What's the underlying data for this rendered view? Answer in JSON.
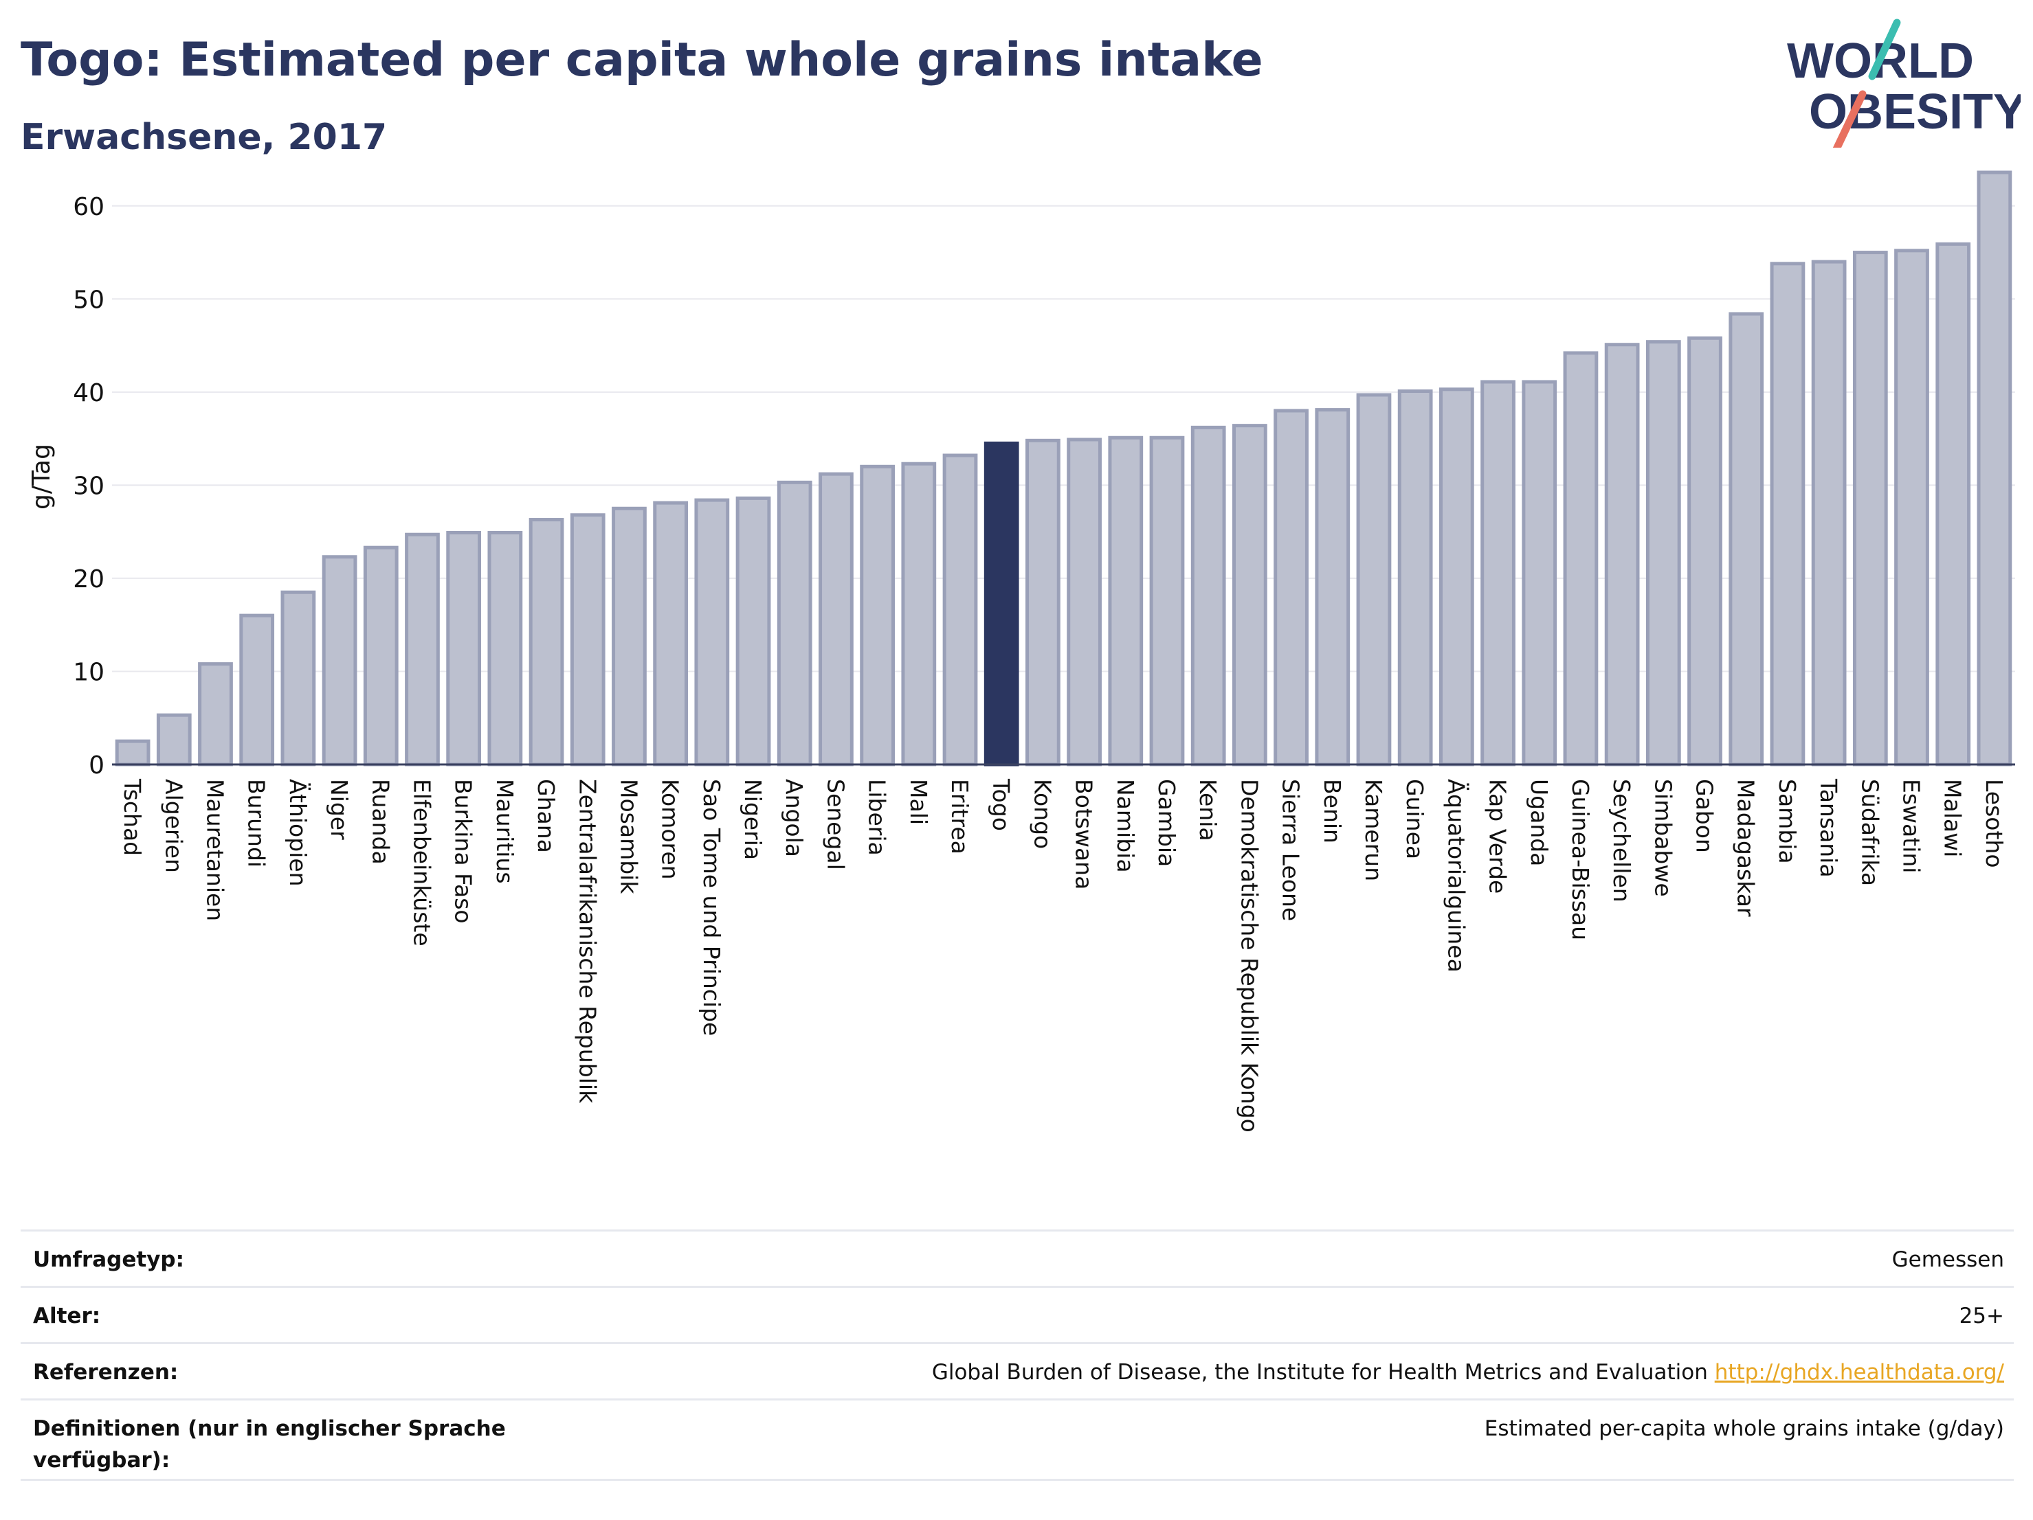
{
  "header": {
    "title": "Togo: Estimated per capita whole grains intake",
    "subtitle": "Erwachsene, 2017"
  },
  "logo": {
    "line1": "WORLD",
    "line2": "OBESITY"
  },
  "colors": {
    "bar_fill": "#bcc0cf",
    "bar_stroke": "#9aa0b8",
    "highlight": "#2b3660",
    "grid": "#e8e8ee",
    "logo_teal": "#3bbdb0",
    "logo_coral": "#e8705f",
    "link": "#e8a623"
  },
  "chart_data": {
    "type": "bar",
    "title": "Togo: Estimated per capita whole grains intake",
    "subtitle": "Erwachsene, 2017",
    "ylabel": "g/Tag",
    "ylim": [
      0,
      65
    ],
    "yticks": [
      0,
      10,
      20,
      30,
      40,
      50,
      60
    ],
    "grid": true,
    "highlight": "Togo",
    "categories": [
      "Tschad",
      "Algerien",
      "Mauretanien",
      "Burundi",
      "Äthiopien",
      "Niger",
      "Ruanda",
      "Elfenbeinküste",
      "Burkina Faso",
      "Mauritius",
      "Ghana",
      "Zentralafrikanische Republik",
      "Mosambik",
      "Komoren",
      "Sao Tome und Principe",
      "Nigeria",
      "Angola",
      "Senegal",
      "Liberia",
      "Mali",
      "Eritrea",
      "Togo",
      "Kongo",
      "Botswana",
      "Namibia",
      "Gambia",
      "Kenia",
      "Demokratische Republik Kongo",
      "Sierra Leone",
      "Benin",
      "Kamerun",
      "Guinea",
      "Äquatorialguinea",
      "Kap Verde",
      "Uganda",
      "Guinea-Bissau",
      "Seychellen",
      "Simbabwe",
      "Gabon",
      "Madagaskar",
      "Sambia",
      "Tansania",
      "Südafrika",
      "Eswatini",
      "Malawi",
      "Lesotho"
    ],
    "values": [
      2.5,
      5.3,
      10.8,
      16.0,
      18.5,
      22.3,
      23.3,
      24.7,
      24.9,
      24.9,
      26.3,
      26.8,
      27.5,
      28.1,
      28.4,
      28.6,
      30.3,
      31.2,
      32.0,
      32.3,
      33.2,
      34.5,
      34.8,
      34.9,
      35.1,
      35.1,
      36.2,
      36.4,
      38.0,
      38.1,
      39.7,
      40.1,
      40.3,
      41.1,
      41.1,
      44.2,
      45.1,
      45.4,
      45.8,
      48.4,
      53.8,
      54.0,
      55.0,
      55.2,
      55.9,
      63.6
    ]
  },
  "meta": [
    {
      "label": "Umfragetyp:",
      "value": "Gemessen"
    },
    {
      "label": "Alter:",
      "value": "25+"
    },
    {
      "label": "Referenzen:",
      "value": "Global Burden of Disease, the Institute for Health Metrics and Evaluation ",
      "link": "http://ghdx.healthdata.org/"
    },
    {
      "label": "Definitionen (nur in englischer Sprache verfügbar):",
      "value": "Estimated per-capita whole grains intake (g/day)"
    }
  ]
}
